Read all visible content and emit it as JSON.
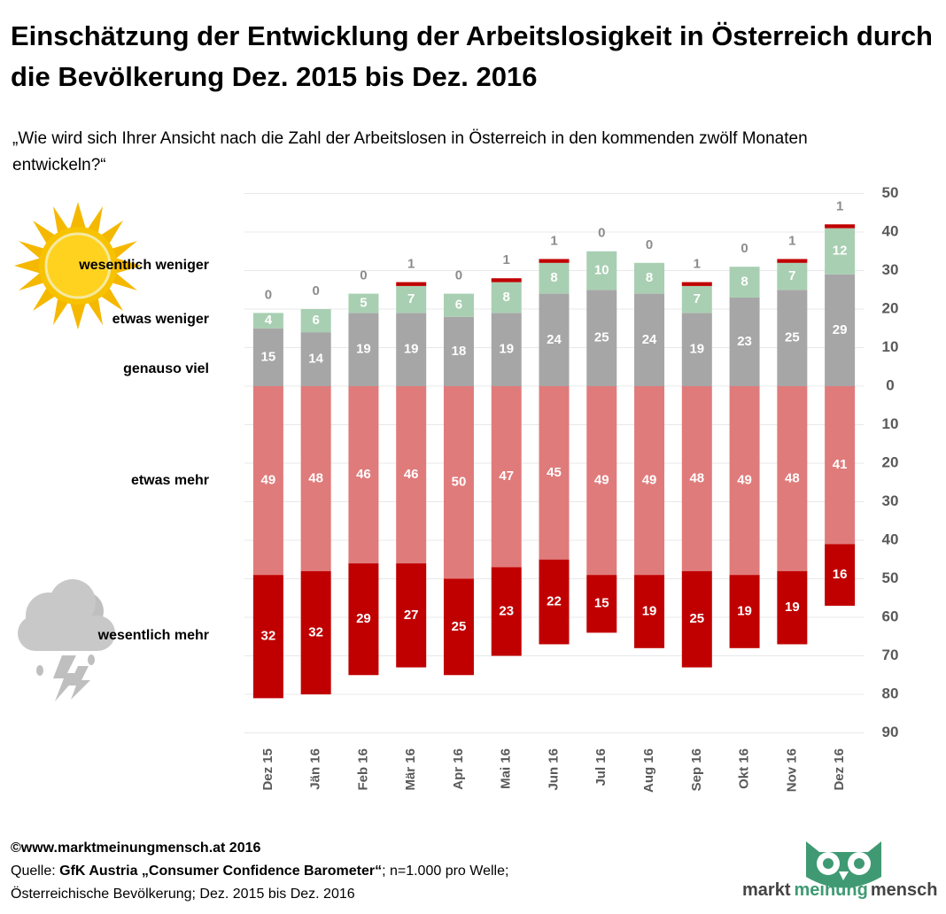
{
  "chart_data": {
    "type": "diverging-stacked-bar",
    "title": "Einschätzung der Entwicklung der Arbeitslosigkeit in Österreich durch die Bevölkerung Dez. 2015 bis Dez. 2016",
    "subtitle": "„Wie wird sich Ihrer Ansicht nach die Zahl der Arbeitslosen in Österreich in den kommenden zwölf Monaten entwickeln?“",
    "categories": [
      "Dez 15",
      "Jän 16",
      "Feb 16",
      "Mär 16",
      "Apr 16",
      "Mai 16",
      "Jun 16",
      "Jul 16",
      "Aug 16",
      "Sep 16",
      "Okt 16",
      "Nov 16",
      "Dez 16"
    ],
    "series": [
      {
        "name": "wesentlich weniger",
        "color": "#c00000",
        "values": [
          0,
          0,
          0,
          1,
          0,
          1,
          1,
          0,
          0,
          1,
          0,
          1,
          1
        ]
      },
      {
        "name": "etwas weniger",
        "color": "#a8cfb2",
        "values": [
          4,
          6,
          5,
          7,
          6,
          8,
          8,
          10,
          8,
          7,
          8,
          7,
          12
        ]
      },
      {
        "name": "genauso viel",
        "color": "#a6a6a6",
        "values": [
          15,
          14,
          19,
          19,
          18,
          19,
          24,
          25,
          24,
          19,
          23,
          25,
          29
        ]
      },
      {
        "name": "etwas mehr",
        "color": "#e07b7b",
        "values": [
          -49,
          -48,
          -46,
          -46,
          -50,
          -47,
          -45,
          -49,
          -49,
          -48,
          -49,
          -48,
          -41
        ],
        "value_labels": [
          "49",
          "48",
          "46",
          "46",
          "50",
          "47",
          "45",
          "49",
          "49",
          "48",
          "49",
          "48",
          "41"
        ]
      },
      {
        "name": "wesentlich mehr",
        "color": "#c00000",
        "values": [
          -32,
          -32,
          -29,
          -27,
          -25,
          -23,
          -22,
          -15,
          -19,
          -25,
          -19,
          -19,
          -16
        ],
        "value_labels": [
          "32",
          "32",
          "29",
          "27",
          "25",
          "23",
          "22",
          "15",
          "19",
          "25",
          "19",
          "19",
          "16"
        ]
      }
    ],
    "ylim": [
      -90,
      50
    ],
    "yticks": [
      {
        "value": -90,
        "label": "90"
      },
      {
        "value": -80,
        "label": "80"
      },
      {
        "value": -70,
        "label": "70"
      },
      {
        "value": -60,
        "label": "60"
      },
      {
        "value": -50,
        "label": "50"
      },
      {
        "value": -40,
        "label": "40"
      },
      {
        "value": -30,
        "label": "30"
      },
      {
        "value": -20,
        "label": "20"
      },
      {
        "value": -10,
        "label": "10"
      },
      0,
      10,
      20,
      30,
      40,
      50
    ],
    "grid": true,
    "y_axis_side": "right"
  },
  "footer": {
    "copyright": "©www.marktmeinungmensch.at 2016",
    "source_prefix": "Quelle:",
    "source_name": "GfK Austria „Consumer Confidence Barometer“",
    "source_suffix": "; n=1.000 pro Welle;",
    "source_line2": "Österreichische Bevölkerung; Dez. 2015 bis Dez. 2016"
  },
  "logo": {
    "part1": "markt",
    "part2": "meinung",
    "part3": "mensch"
  }
}
